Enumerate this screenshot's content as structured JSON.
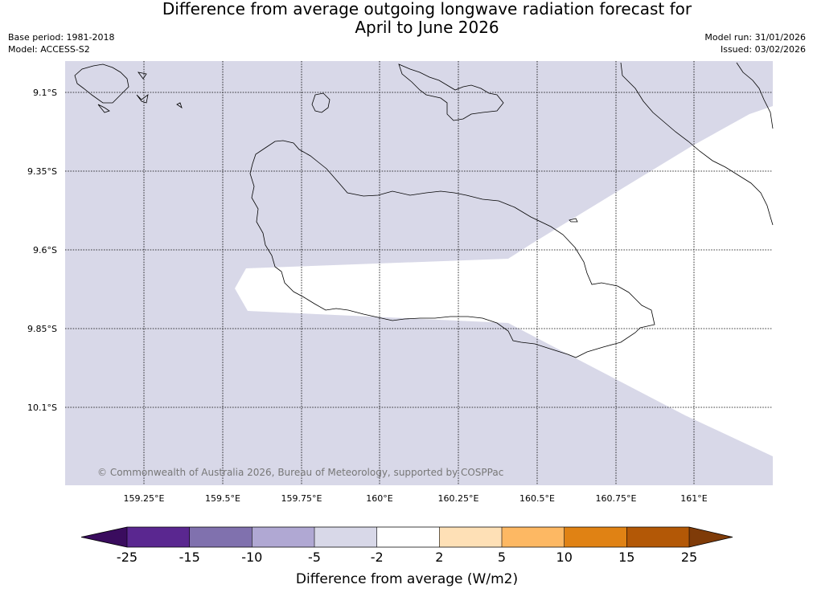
{
  "title": {
    "line1": "Difference from average outgoing longwave radiation forecast for",
    "line2": "April to June 2026"
  },
  "meta": {
    "base_period": "Base period: 1981-2018",
    "model": "Model: ACCESS-S2",
    "model_run": "Model run: 31/01/2026",
    "issued": "Issued: 03/02/2026"
  },
  "map": {
    "lat_labels": [
      "9.1°S",
      "9.35°S",
      "9.6°S",
      "9.85°S",
      "10.1°S"
    ],
    "lon_labels": [
      "159.25°E",
      "159.5°E",
      "159.75°E",
      "160°E",
      "160.25°E",
      "160.5°E",
      "160.75°E",
      "161°E"
    ],
    "copyright": "© Commonwealth of Australia 2026, Bureau of Meteorology, supported by COSPPac",
    "fill_colors": {
      "neg_2_to_neg_5": "#d8d8e8",
      "neutral": "#ffffff"
    }
  },
  "colorbar": {
    "title": "Difference from average (W/m2)",
    "ticks": [
      "-25",
      "-15",
      "-10",
      "-5",
      "-2",
      "2",
      "5",
      "10",
      "15",
      "25"
    ],
    "colors": [
      "#3a0c5e",
      "#5a2790",
      "#8071ae",
      "#b0a8d3",
      "#d8d8e8",
      "#ffffff",
      "#fee0b6",
      "#fdb863",
      "#e08214",
      "#b35806",
      "#7f3b08"
    ]
  }
}
